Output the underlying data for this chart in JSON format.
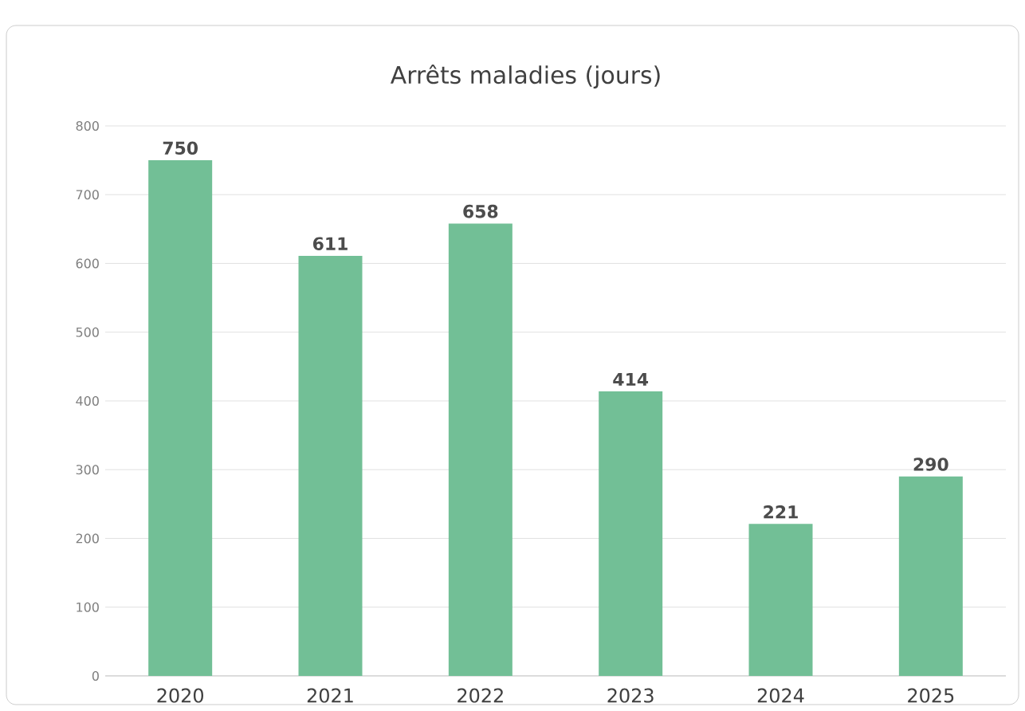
{
  "chart_data": {
    "type": "bar",
    "title": "Arrêts maladies (jours)",
    "categories": [
      "2020",
      "2021",
      "2022",
      "2023",
      "2024",
      "2025"
    ],
    "values": [
      750,
      611,
      658,
      414,
      221,
      290
    ],
    "color": "#72bf96",
    "ylim": [
      0,
      800
    ],
    "yticks": [
      0,
      100,
      200,
      300,
      400,
      500,
      600,
      700,
      800
    ],
    "grid": "y",
    "data_labels": true
  }
}
